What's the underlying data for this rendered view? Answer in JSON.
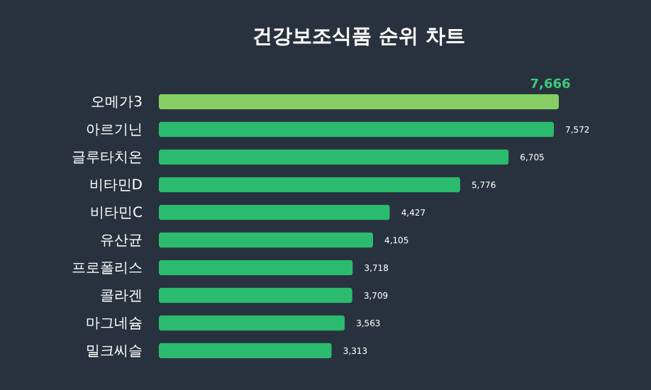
{
  "chart_data": {
    "type": "bar",
    "orientation": "horizontal",
    "title": "건강보조식품 순위 차트",
    "categories": [
      "오메가3",
      "아르기닌",
      "글루타치온",
      "비타민D",
      "비타민C",
      "유산균",
      "프로폴리스",
      "콜라겐",
      "마그네슘",
      "밀크씨슬"
    ],
    "values": [
      7666,
      7572,
      6705,
      5776,
      4427,
      4105,
      3718,
      3709,
      3563,
      3313
    ],
    "colors": [
      "#86cf62",
      "#2bbb6f",
      "#2bbb6f",
      "#2bbb6f",
      "#2bbb6f",
      "#2bbb6f",
      "#2bbb6f",
      "#2bbb6f",
      "#2bbb6f",
      "#2bbb6f"
    ],
    "value_labels": [
      "7,666",
      "7,572",
      "6,705",
      "5,776",
      "4,427",
      "4,105",
      "3,718",
      "3,709",
      "3,563",
      "3,313"
    ],
    "grid": false
  }
}
